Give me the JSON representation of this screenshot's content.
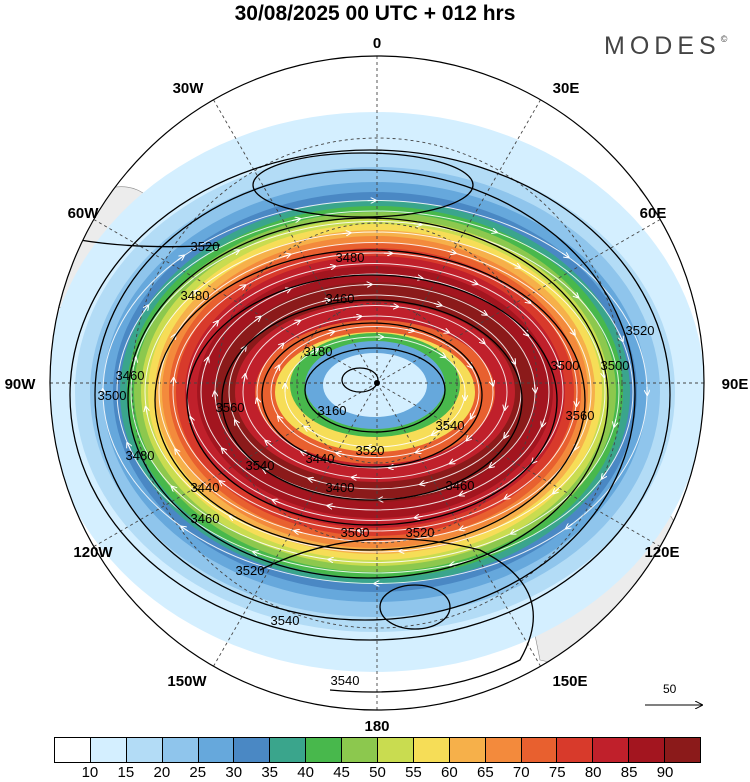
{
  "header": {
    "title": "30/08/2025  00 UTC  + 012 hrs",
    "brand": "MODES",
    "brand_mark": "©"
  },
  "map": {
    "projection": "south-polar-stereographic",
    "longitude_labels": [
      {
        "name": "lon-0",
        "text": "0"
      },
      {
        "name": "lon-30e",
        "text": "30E"
      },
      {
        "name": "lon-60e",
        "text": "60E"
      },
      {
        "name": "lon-90e",
        "text": "90E"
      },
      {
        "name": "lon-120e",
        "text": "120E"
      },
      {
        "name": "lon-150e",
        "text": "150E"
      },
      {
        "name": "lon-180",
        "text": "180"
      },
      {
        "name": "lon-150w",
        "text": "150W"
      },
      {
        "name": "lon-120w",
        "text": "120W"
      },
      {
        "name": "lon-90w",
        "text": "90W"
      },
      {
        "name": "lon-60w",
        "text": "60W"
      },
      {
        "name": "lon-30w",
        "text": "30W"
      }
    ],
    "contour_labels": [
      "3520",
      "3480",
      "3480",
      "3500",
      "3180",
      "3460",
      "3460",
      "3160",
      "3500",
      "3560",
      "3540",
      "3520",
      "3560",
      "3540",
      "3480",
      "3440",
      "3440",
      "3400",
      "3460",
      "3500",
      "3520",
      "3520",
      "3500",
      "3520",
      "3460",
      "3540",
      "3540"
    ],
    "vector_scale_label": "50"
  },
  "colorbar": {
    "colors": [
      "#ffffff",
      "#d4efff",
      "#b3dcf6",
      "#8fc5ec",
      "#66a8dc",
      "#4a88c4",
      "#3aa58c",
      "#48b84c",
      "#8cc84e",
      "#c9dc50",
      "#f6dd57",
      "#f6b04a",
      "#f38a3c",
      "#e8602f",
      "#d83a2b",
      "#c0202b",
      "#a3151f",
      "#8b1a1a"
    ],
    "labels": [
      "10",
      "15",
      "20",
      "25",
      "30",
      "35",
      "40",
      "45",
      "50",
      "55",
      "60",
      "65",
      "70",
      "75",
      "80",
      "85",
      "90"
    ]
  }
}
